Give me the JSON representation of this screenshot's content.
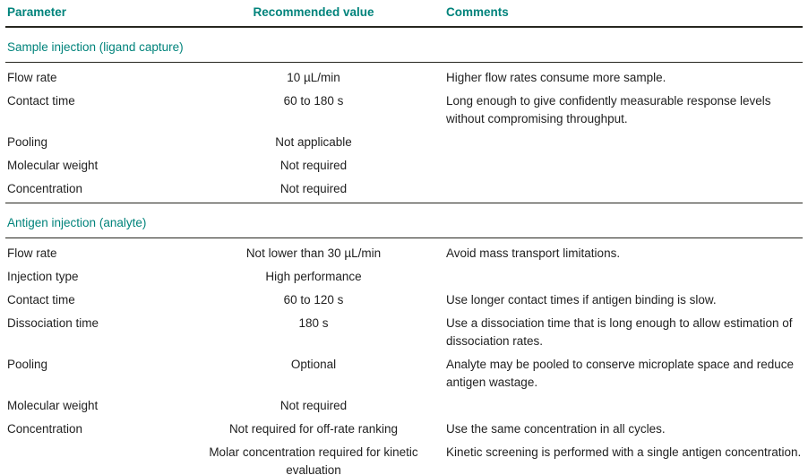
{
  "colors": {
    "accent": "#00837B",
    "text": "#1F1F1F",
    "rule": "#26261F"
  },
  "table": {
    "headers": [
      "Parameter",
      "Recommended value",
      "Comments"
    ],
    "sections": [
      {
        "title": "Sample injection (ligand capture)",
        "rows": [
          {
            "parameter": "Flow rate",
            "value": "10 µL/min",
            "comment": "Higher flow rates consume more sample."
          },
          {
            "parameter": "Contact time",
            "value": "60 to 180 s",
            "comment": "Long enough to give confidently measurable response levels without compromising throughput."
          },
          {
            "parameter": "Pooling",
            "value": "Not applicable",
            "comment": ""
          },
          {
            "parameter": "Molecular weight",
            "value": "Not required",
            "comment": ""
          },
          {
            "parameter": "Concentration",
            "value": "Not required",
            "comment": ""
          }
        ]
      },
      {
        "title": "Antigen injection (analyte)",
        "rows": [
          {
            "parameter": "Flow rate",
            "value": "Not lower than 30 µL/min",
            "comment": "Avoid mass transport limitations."
          },
          {
            "parameter": "Injection type",
            "value": "High performance",
            "comment": ""
          },
          {
            "parameter": "Contact time",
            "value": "60 to 120 s",
            "comment": "Use longer contact times if antigen binding is slow."
          },
          {
            "parameter": "Dissociation time",
            "value": "180 s",
            "comment": "Use a dissociation time that is long enough to allow estimation of dissociation rates."
          },
          {
            "parameter": "Pooling",
            "value": "Optional",
            "comment": "Analyte may be pooled to conserve microplate space and reduce antigen wastage."
          },
          {
            "parameter": "Molecular weight",
            "value": "Not required",
            "comment": ""
          },
          {
            "parameter": "Concentration",
            "value": "Not required for off-rate ranking",
            "comment": "Use the same concentration in all cycles."
          },
          {
            "parameter": "",
            "value": "Molar concentration required for kinetic evaluation",
            "comment": "Kinetic screening is performed with a single antigen concentration."
          }
        ]
      }
    ]
  }
}
